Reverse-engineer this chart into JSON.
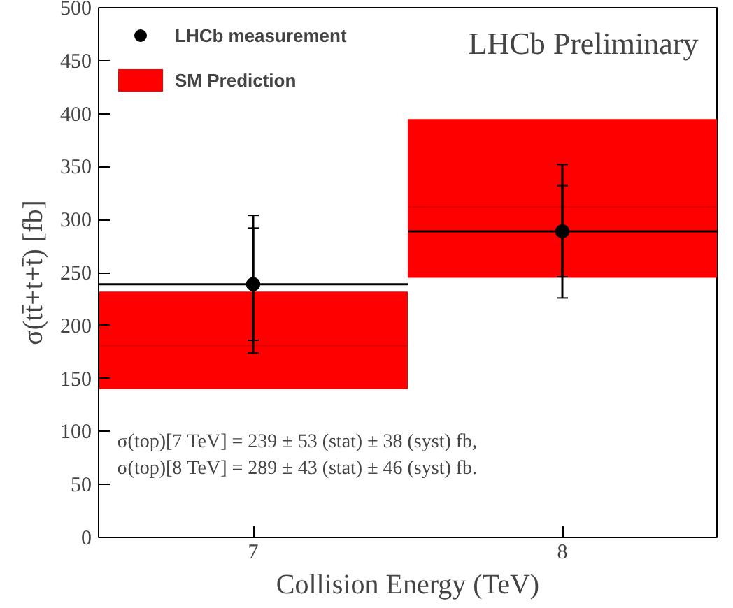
{
  "chart_data": {
    "type": "scatter",
    "xlabel": "Collision Energy (TeV)",
    "ylabel": "σ(tt̄+t+t̄) [fb]",
    "xlim": [
      6.5,
      8.5
    ],
    "xticks": [
      7,
      8
    ],
    "ylim": [
      0,
      500
    ],
    "yticks": [
      0,
      50,
      100,
      150,
      200,
      250,
      300,
      350,
      400,
      450,
      500
    ],
    "grid": false,
    "legend": "top left",
    "series": [
      {
        "name": "SM Prediction",
        "type": "bar",
        "color": "#ff0000",
        "x": [
          7,
          8
        ],
        "values": [
          92,
          150
        ],
        "base": [
          140,
          245
        ]
      },
      {
        "type": "line",
        "color": "#e00000",
        "x": [
          6.5,
          7.5
        ],
        "values": [
          181,
          181
        ]
      },
      {
        "type": "line",
        "color": "#e00000",
        "x": [
          7.5,
          8.5
        ],
        "values": [
          312,
          312
        ]
      },
      {
        "name": "LHCb measurement",
        "color": "#000000",
        "marker": "circle",
        "x": [
          7,
          8
        ],
        "values": [
          239,
          289
        ],
        "errors": [
          65,
          63
        ],
        "xerrors": [
          0.5,
          0.5
        ]
      },
      {
        "color": "#000000",
        "marker": "circle",
        "x": [
          7,
          8
        ],
        "values": [
          239,
          289
        ],
        "errors": [
          53,
          43
        ]
      }
    ],
    "annotations": [
      "LHCb Preliminary",
      "σ(top)[7 TeV]   =   239 ± 53 (stat) ± 38 (syst) fb,",
      "σ(top)[8 TeV]   =   289 ± 43 (stat) ± 46 (syst) fb."
    ]
  }
}
